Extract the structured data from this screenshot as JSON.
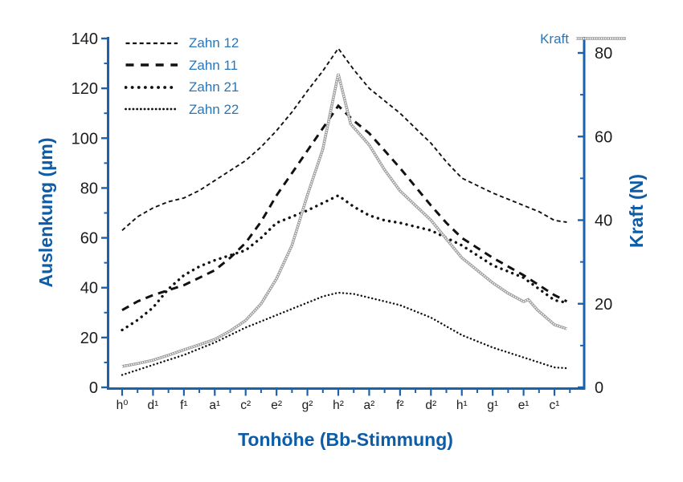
{
  "figure": {
    "background": "#ffffff",
    "axis_color": "#1a63ac",
    "tick_label_color": "#1c1c1c",
    "title_color": "#0e5ca6",
    "legend_text_color": "#2b76b6",
    "series_black": "#111111",
    "kraft_gray": "#9d9d9d"
  },
  "axes": {
    "x_title": "Tonhöhe (Bb-Stimmung)",
    "y_left_title": "Auslenkung (µm)",
    "y_right_title": "Kraft (N)",
    "y_left_ticks": [
      0,
      20,
      40,
      60,
      80,
      100,
      120,
      140
    ],
    "y_right_ticks": [
      0,
      20,
      40,
      60,
      80
    ],
    "x_tick_labels_display": [
      "h⁰",
      "d¹",
      "f¹",
      "a¹",
      "c²",
      "e²",
      "g²",
      "h²",
      "a²",
      "f²",
      "d²",
      "h¹",
      "g¹",
      "e¹",
      "c¹"
    ]
  },
  "chart_data": {
    "type": "line",
    "title": "",
    "xlabel": "Tonhöhe (Bb-Stimmung)",
    "ylabel_left": "Auslenkung (µm)",
    "ylabel_right": "Kraft (N)",
    "ylim_left": [
      0,
      140
    ],
    "ylim_right": [
      0,
      80
    ],
    "grid": false,
    "legend_position": "top-left (Zahn series) and top-right (Kraft)",
    "x_categories": [
      "h0",
      "d1",
      "f1",
      "a1",
      "c2",
      "e2",
      "g2",
      "h2",
      "a2",
      "f2",
      "d2",
      "h1",
      "g1",
      "e1",
      "c1"
    ],
    "series": [
      {
        "name": "Zahn 12",
        "axis": "left",
        "unit": "µm",
        "style": "dash-short",
        "color": "#111111",
        "values": [
          63,
          72,
          76,
          83,
          91,
          103,
          119,
          136,
          120,
          110,
          98,
          84,
          78,
          73,
          67
        ],
        "points": [
          [
            0,
            63
          ],
          [
            0.5,
            68.5
          ],
          [
            1,
            72
          ],
          [
            1.5,
            74.5
          ],
          [
            2,
            76
          ],
          [
            2.5,
            79
          ],
          [
            3,
            83
          ],
          [
            3.5,
            87
          ],
          [
            4,
            91
          ],
          [
            4.5,
            96.5
          ],
          [
            5,
            103
          ],
          [
            5.5,
            110.5
          ],
          [
            6,
            119
          ],
          [
            6.5,
            127
          ],
          [
            7,
            136
          ],
          [
            7.5,
            127.5
          ],
          [
            8,
            120
          ],
          [
            8.5,
            115
          ],
          [
            9,
            110
          ],
          [
            9.5,
            104
          ],
          [
            10,
            98
          ],
          [
            10.5,
            90.5
          ],
          [
            11,
            84
          ],
          [
            11.5,
            81
          ],
          [
            12,
            78
          ],
          [
            12.5,
            75.5
          ],
          [
            13,
            73
          ],
          [
            13.5,
            70.5
          ],
          [
            14,
            67
          ],
          [
            14.4,
            66.3
          ]
        ]
      },
      {
        "name": "Zahn 11",
        "axis": "left",
        "unit": "µm",
        "style": "dash-long",
        "color": "#111111",
        "values": [
          31,
          37,
          41,
          47,
          58,
          77,
          95,
          113,
          102,
          88,
          73,
          60,
          52,
          45,
          37
        ],
        "points": [
          [
            0,
            31
          ],
          [
            0.5,
            34.5
          ],
          [
            1,
            37
          ],
          [
            1.5,
            39
          ],
          [
            2,
            41
          ],
          [
            2.5,
            44
          ],
          [
            3,
            47
          ],
          [
            3.5,
            52
          ],
          [
            4,
            58
          ],
          [
            4.5,
            66.5
          ],
          [
            5,
            77
          ],
          [
            5.5,
            86
          ],
          [
            6,
            95
          ],
          [
            6.5,
            104
          ],
          [
            7,
            113
          ],
          [
            7.5,
            107
          ],
          [
            8,
            102
          ],
          [
            8.5,
            95
          ],
          [
            9,
            88
          ],
          [
            9.5,
            80.5
          ],
          [
            10,
            73
          ],
          [
            10.5,
            66
          ],
          [
            11,
            60
          ],
          [
            11.5,
            56
          ],
          [
            12,
            52
          ],
          [
            12.5,
            48.5
          ],
          [
            13,
            45
          ],
          [
            13.5,
            41
          ],
          [
            14,
            37
          ],
          [
            14.4,
            34.5
          ]
        ]
      },
      {
        "name": "Zahn 21",
        "axis": "left",
        "unit": "µm",
        "style": "dot-large",
        "color": "#111111",
        "values": [
          23,
          32,
          45,
          51,
          55,
          66,
          71,
          77,
          69,
          66,
          63,
          57,
          49,
          44,
          35
        ],
        "points": [
          [
            0,
            23
          ],
          [
            0.5,
            27
          ],
          [
            1,
            32
          ],
          [
            1.5,
            39.5
          ],
          [
            2,
            45
          ],
          [
            2.5,
            48.5
          ],
          [
            3,
            51
          ],
          [
            3.5,
            53
          ],
          [
            4,
            55
          ],
          [
            4.5,
            60
          ],
          [
            5,
            66
          ],
          [
            5.5,
            68.5
          ],
          [
            6,
            71
          ],
          [
            6.5,
            74
          ],
          [
            7,
            77
          ],
          [
            7.5,
            72.5
          ],
          [
            8,
            69
          ],
          [
            8.5,
            67
          ],
          [
            9,
            66
          ],
          [
            9.5,
            64.5
          ],
          [
            10,
            63
          ],
          [
            10.5,
            60
          ],
          [
            11,
            57
          ],
          [
            11.5,
            53
          ],
          [
            12,
            49
          ],
          [
            12.5,
            46.5
          ],
          [
            13,
            44
          ],
          [
            13.5,
            39.5
          ],
          [
            14,
            35
          ],
          [
            14.4,
            34
          ]
        ]
      },
      {
        "name": "Zahn 22",
        "axis": "left",
        "unit": "µm",
        "style": "dot-small",
        "color": "#111111",
        "values": [
          5,
          9,
          13,
          18,
          24,
          29,
          34,
          38,
          36,
          33,
          28,
          21,
          16,
          12,
          8
        ],
        "points": [
          [
            0,
            5
          ],
          [
            0.5,
            7
          ],
          [
            1,
            9
          ],
          [
            1.5,
            11
          ],
          [
            2,
            13
          ],
          [
            2.5,
            15.5
          ],
          [
            3,
            18
          ],
          [
            3.5,
            21
          ],
          [
            4,
            24
          ],
          [
            4.5,
            26.5
          ],
          [
            5,
            29
          ],
          [
            5.5,
            31.5
          ],
          [
            6,
            34
          ],
          [
            6.5,
            36.5
          ],
          [
            7,
            38
          ],
          [
            7.5,
            37.5
          ],
          [
            8,
            36
          ],
          [
            8.5,
            34.5
          ],
          [
            9,
            33
          ],
          [
            9.5,
            30.5
          ],
          [
            10,
            28
          ],
          [
            10.5,
            24.5
          ],
          [
            11,
            21
          ],
          [
            11.5,
            18.5
          ],
          [
            12,
            16
          ],
          [
            12.5,
            14
          ],
          [
            13,
            12
          ],
          [
            13.5,
            10
          ],
          [
            14,
            8
          ],
          [
            14.4,
            7.7
          ]
        ]
      },
      {
        "name": "Kraft",
        "axis": "right",
        "unit": "N",
        "style": "rope",
        "color": "#9d9d9d",
        "values": [
          5,
          6.5,
          9,
          11.5,
          16,
          26,
          46,
          75,
          58,
          47,
          40,
          31,
          25,
          20.5,
          15
        ],
        "points": [
          [
            0,
            5
          ],
          [
            0.5,
            5.7
          ],
          [
            1,
            6.5
          ],
          [
            1.5,
            7.7
          ],
          [
            2,
            9
          ],
          [
            2.5,
            10.2
          ],
          [
            3,
            11.5
          ],
          [
            3.5,
            13.5
          ],
          [
            4,
            16
          ],
          [
            4.5,
            20
          ],
          [
            5,
            26
          ],
          [
            5.5,
            34
          ],
          [
            6,
            46
          ],
          [
            6.5,
            57
          ],
          [
            7,
            75
          ],
          [
            7.4,
            63
          ],
          [
            8,
            58
          ],
          [
            8.5,
            52
          ],
          [
            9,
            47
          ],
          [
            9.5,
            43.5
          ],
          [
            10,
            40
          ],
          [
            10.5,
            35.5
          ],
          [
            11,
            31
          ],
          [
            11.5,
            28
          ],
          [
            12,
            25
          ],
          [
            12.5,
            22.5
          ],
          [
            13,
            20.5
          ],
          [
            13.15,
            21
          ],
          [
            13.45,
            18.5
          ],
          [
            14,
            15
          ],
          [
            14.4,
            14
          ]
        ]
      }
    ]
  }
}
